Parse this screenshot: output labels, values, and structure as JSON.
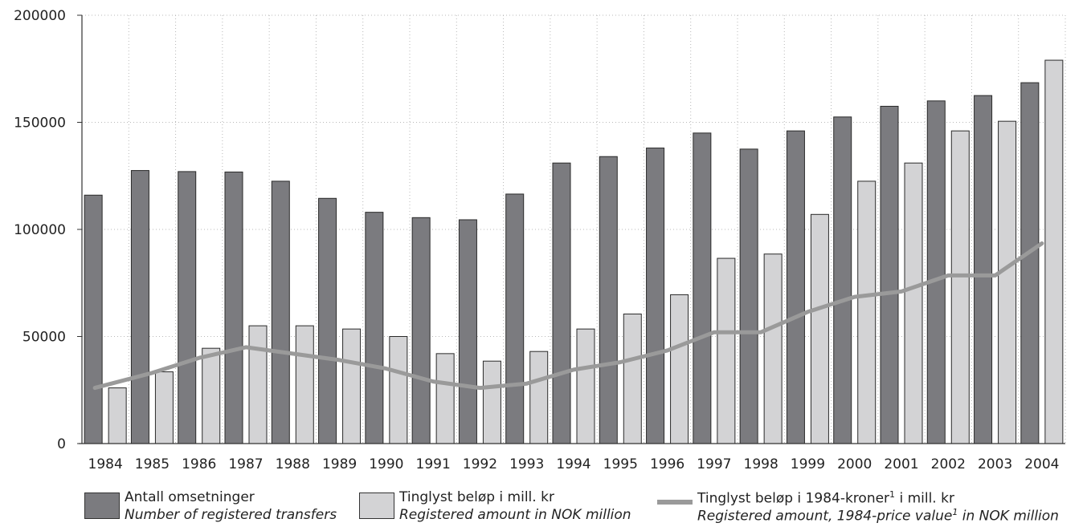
{
  "chart_data": {
    "type": "bar",
    "categories": [
      "1984",
      "1985",
      "1986",
      "1987",
      "1988",
      "1989",
      "1990",
      "1991",
      "1992",
      "1993",
      "1994",
      "1995",
      "1996",
      "1997",
      "1998",
      "1999",
      "2000",
      "2001",
      "2002",
      "2003",
      "2004"
    ],
    "series": [
      {
        "name": "Antall omsetninger",
        "type": "bar",
        "color": "#7b7b7f",
        "values": [
          116000,
          127500,
          127000,
          126800,
          122500,
          114500,
          108000,
          105500,
          104500,
          116500,
          131000,
          134000,
          138000,
          145000,
          137500,
          146000,
          152500,
          157500,
          160000,
          162500,
          168500
        ]
      },
      {
        "name": "Tinglyst beløp i mill. kr",
        "type": "bar",
        "color": "#d3d3d5",
        "values": [
          26000,
          33500,
          44500,
          55000,
          55000,
          53500,
          50000,
          42000,
          38500,
          43000,
          53500,
          60500,
          69500,
          86500,
          88500,
          107000,
          122500,
          131000,
          146000,
          150500,
          179000
        ]
      },
      {
        "name": "Tinglyst beløp i 1984-kroner¹ i mill. kr",
        "type": "line",
        "color": "#9a9a9a",
        "values": [
          26000,
          33000,
          40000,
          45000,
          42000,
          39000,
          35000,
          29000,
          26000,
          28000,
          34500,
          38000,
          43500,
          52000,
          52000,
          61500,
          68500,
          71000,
          78500,
          78500,
          93500
        ]
      }
    ],
    "yticks": [
      "0",
      "50000",
      "100000",
      "150000",
      "200000"
    ],
    "ylim": [
      0,
      200000
    ],
    "grid": "dotted",
    "legend_position": "bottom"
  },
  "legend": [
    {
      "label": "Antall omsetninger",
      "label_en": "Number of registered transfers",
      "swatch": "#7b7b7f"
    },
    {
      "label": "Tinglyst beløp i mill. kr",
      "label_en": "Registered amount in NOK million",
      "swatch": "#d3d3d5"
    },
    {
      "label_pre": "Tinglyst beløp i 1984-kroner",
      "label_sup": "1",
      "label_post": " i mill. kr",
      "label_en_pre": "Registered amount, 1984-price value",
      "label_en_sup": "1",
      "label_en_post": " in NOK million",
      "swatch": "#9a9a9a"
    }
  ]
}
